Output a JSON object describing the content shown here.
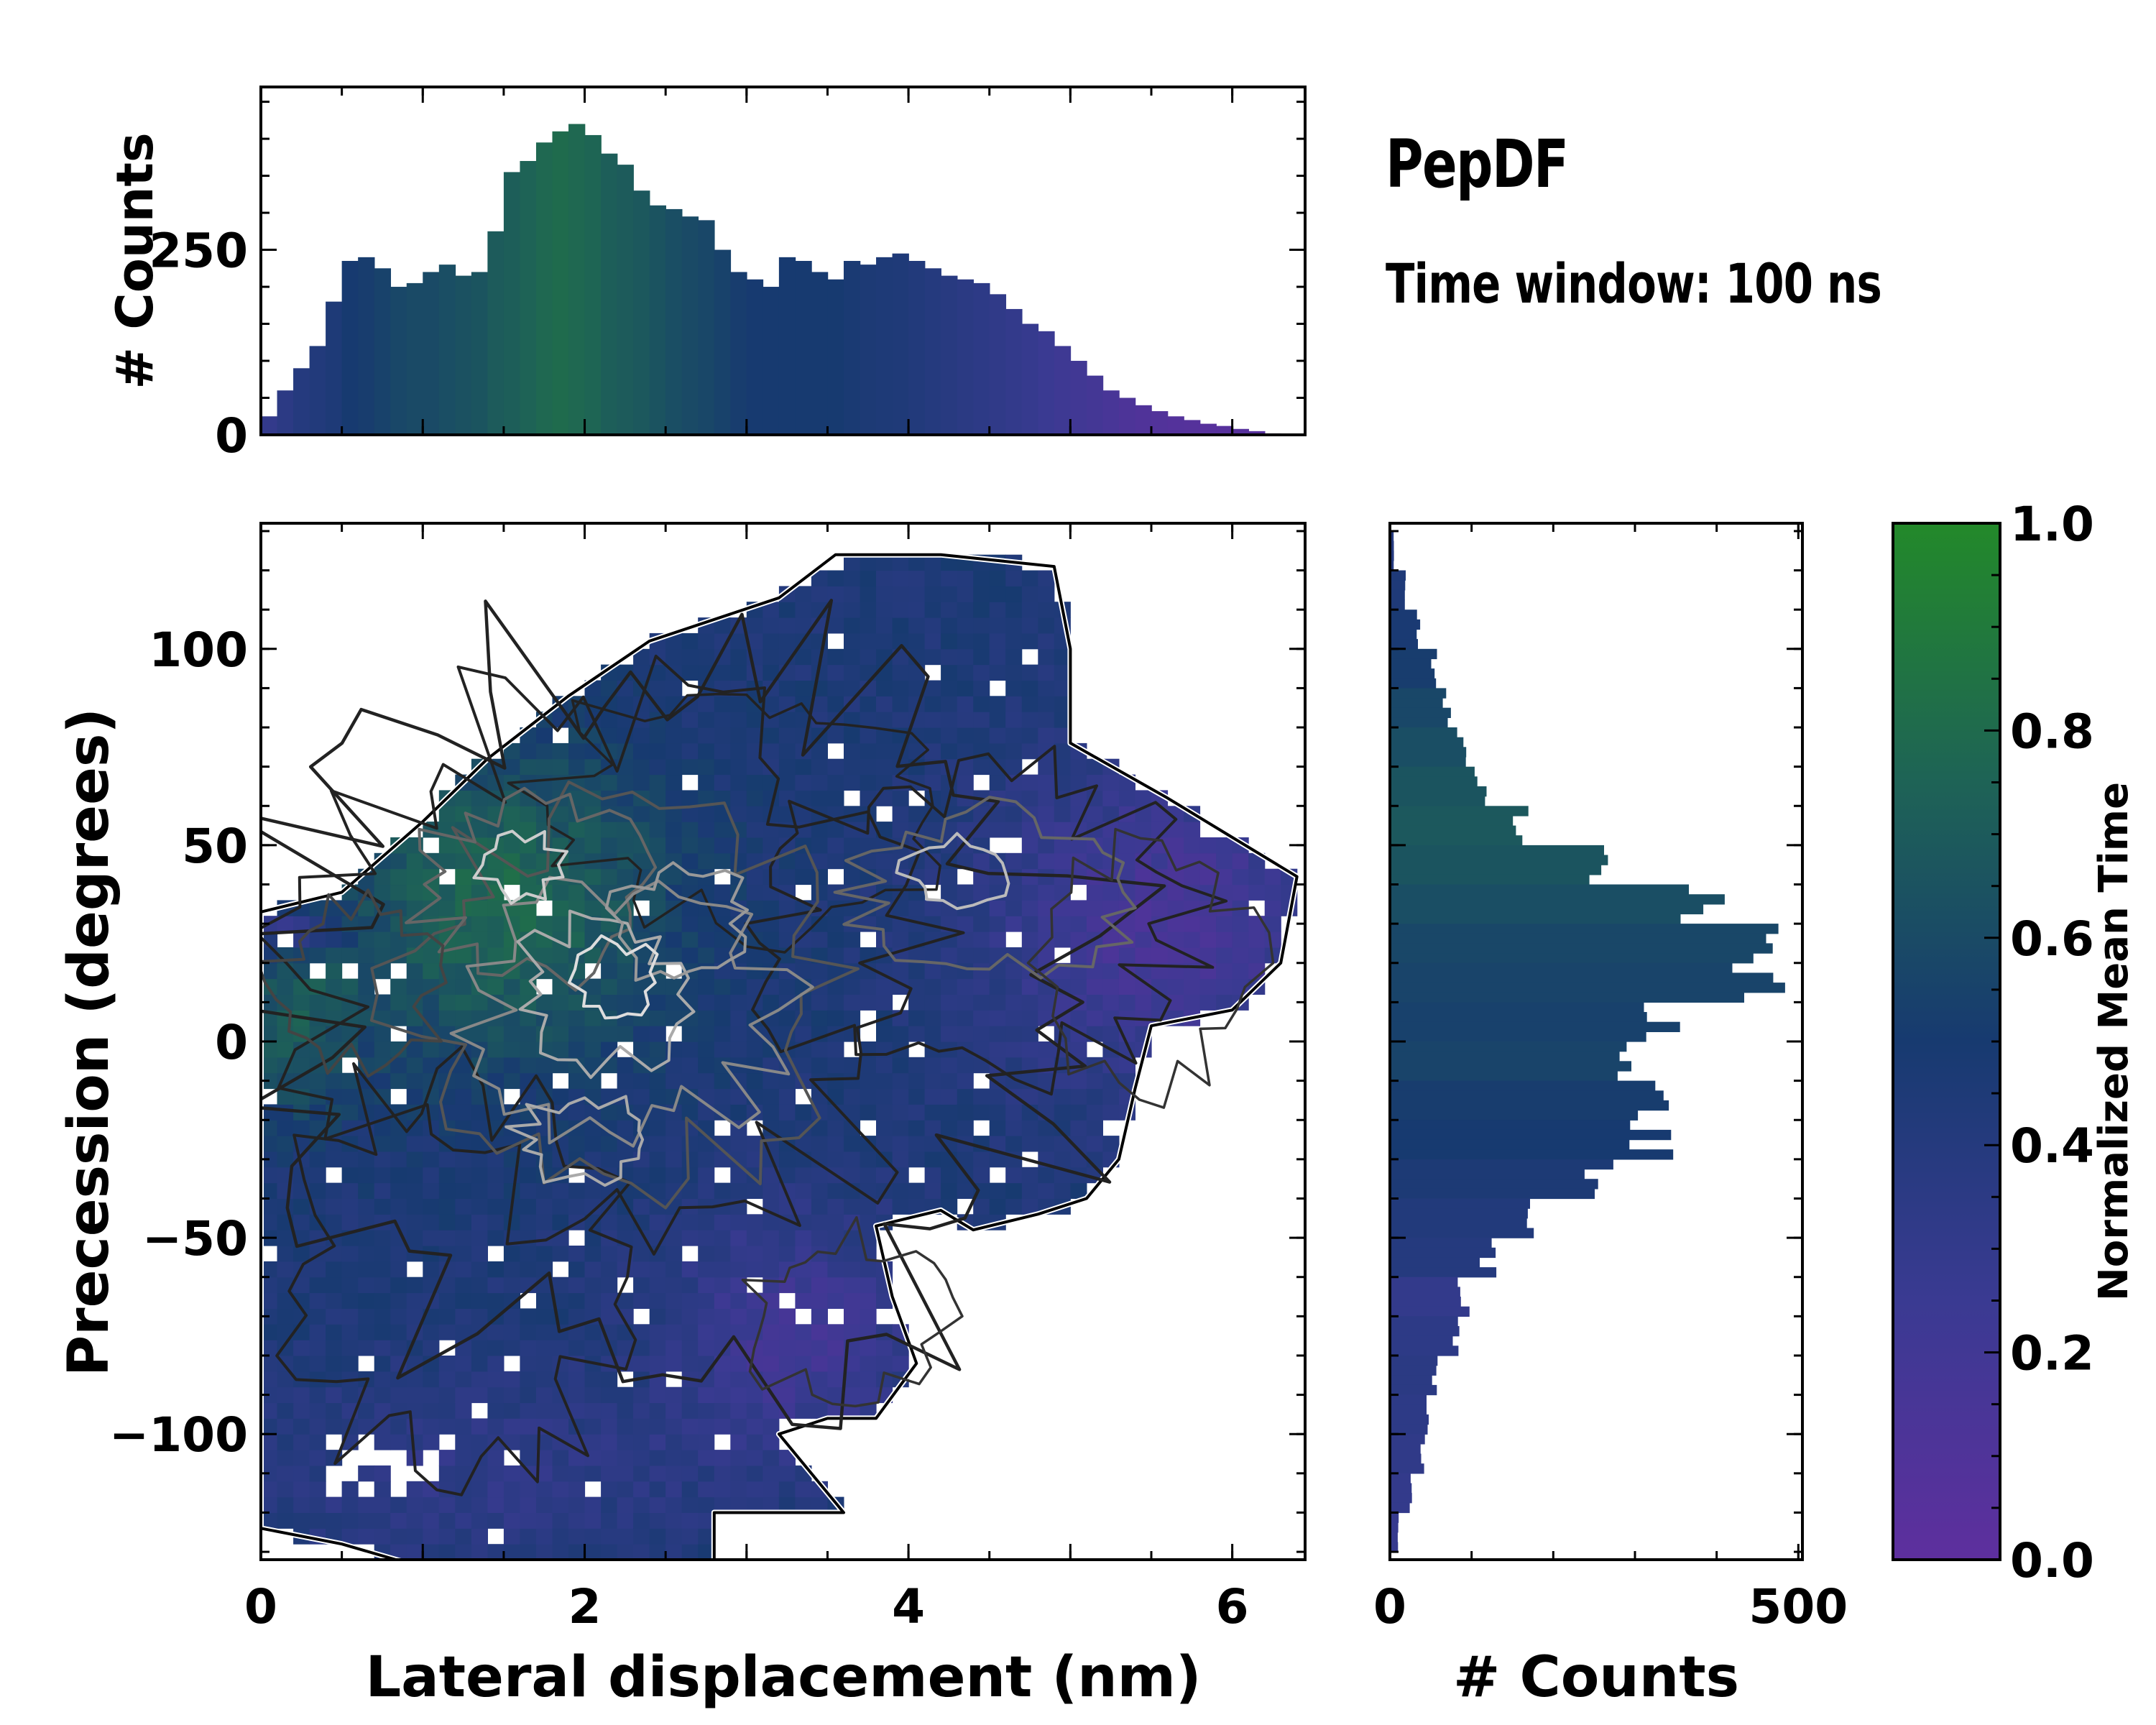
{
  "title": "PepDF",
  "subtitle": "Time window: 100 ns",
  "colors": {
    "low": "#5E2F9E",
    "mid": "#173A70",
    "high": "#23892A"
  },
  "chart_data": [
    {
      "type": "heatmap",
      "panel": "main",
      "xlabel": "Lateral displacement (nm)",
      "ylabel": "Precession (degrees)",
      "xlim": [
        0,
        6.45
      ],
      "ylim": [
        -132,
        132
      ],
      "xticks": [
        0,
        2,
        4,
        6
      ],
      "xtick_labels": [
        "0",
        "2",
        "4",
        "6"
      ],
      "yticks": [
        100,
        50,
        0,
        -50,
        -100
      ],
      "ytick_labels": [
        "100",
        "50",
        "0",
        "−50",
        "−100"
      ],
      "color_meaning": "Normalized Mean Time",
      "overlay": "density contours"
    },
    {
      "type": "bar",
      "panel": "top",
      "orientation": "vertical",
      "ylabel": "# Counts",
      "xlim": [
        0,
        6.45
      ],
      "ylim": [
        0,
        470
      ],
      "yticks": [
        0,
        250
      ],
      "ytick_labels": [
        "0",
        "250"
      ],
      "x": [
        0.05,
        0.15,
        0.25,
        0.35,
        0.45,
        0.55,
        0.65,
        0.75,
        0.85,
        0.95,
        1.05,
        1.15,
        1.25,
        1.35,
        1.45,
        1.55,
        1.65,
        1.75,
        1.85,
        1.95,
        2.05,
        2.15,
        2.25,
        2.35,
        2.45,
        2.55,
        2.65,
        2.75,
        2.85,
        2.95,
        3.05,
        3.15,
        3.25,
        3.35,
        3.45,
        3.55,
        3.65,
        3.75,
        3.85,
        3.95,
        4.05,
        4.15,
        4.25,
        4.35,
        4.45,
        4.55,
        4.65,
        4.75,
        4.85,
        4.95,
        5.05,
        5.15,
        5.25,
        5.35,
        5.45,
        5.55,
        5.65,
        5.75,
        5.85,
        5.95,
        6.05,
        6.15,
        6.25
      ],
      "values": [
        25,
        60,
        90,
        120,
        180,
        235,
        240,
        225,
        200,
        205,
        220,
        230,
        215,
        220,
        275,
        355,
        370,
        395,
        410,
        420,
        405,
        380,
        365,
        330,
        310,
        305,
        295,
        290,
        250,
        220,
        210,
        200,
        240,
        235,
        220,
        210,
        235,
        230,
        240,
        245,
        235,
        225,
        215,
        210,
        205,
        190,
        170,
        150,
        140,
        120,
        100,
        80,
        60,
        50,
        40,
        32,
        25,
        20,
        15,
        12,
        8,
        5,
        2
      ],
      "colors": [
        0.3,
        0.35,
        0.4,
        0.42,
        0.45,
        0.5,
        0.52,
        0.55,
        0.58,
        0.6,
        0.6,
        0.62,
        0.64,
        0.66,
        0.7,
        0.72,
        0.75,
        0.78,
        0.8,
        0.78,
        0.76,
        0.72,
        0.7,
        0.68,
        0.65,
        0.62,
        0.6,
        0.58,
        0.55,
        0.52,
        0.5,
        0.5,
        0.5,
        0.5,
        0.5,
        0.5,
        0.48,
        0.46,
        0.45,
        0.44,
        0.42,
        0.4,
        0.38,
        0.36,
        0.34,
        0.32,
        0.3,
        0.28,
        0.25,
        0.22,
        0.2,
        0.18,
        0.15,
        0.12,
        0.1,
        0.08,
        0.07,
        0.06,
        0.05,
        0.05,
        0.05,
        0.05,
        0.05
      ]
    },
    {
      "type": "bar",
      "panel": "right",
      "orientation": "horizontal",
      "xlabel": "# Counts",
      "xlim": [
        0,
        505
      ],
      "xticks": [
        0,
        500
      ],
      "xtick_labels": [
        "0",
        "500"
      ],
      "y": [
        125,
        115,
        105,
        95,
        85,
        75,
        65,
        55,
        45,
        35,
        25,
        15,
        5,
        -5,
        -15,
        -25,
        -35,
        -45,
        -55,
        -65,
        -75,
        -85,
        -95,
        -105,
        -115,
        -125
      ],
      "values": [
        5,
        18,
        35,
        55,
        70,
        90,
        110,
        165,
        260,
        390,
        470,
        455,
        340,
        280,
        330,
        320,
        260,
        180,
        120,
        90,
        80,
        55,
        45,
        40,
        25,
        10
      ],
      "colors": [
        0.4,
        0.44,
        0.48,
        0.52,
        0.58,
        0.62,
        0.66,
        0.68,
        0.66,
        0.62,
        0.58,
        0.56,
        0.54,
        0.56,
        0.52,
        0.5,
        0.46,
        0.42,
        0.4,
        0.3,
        0.34,
        0.36,
        0.34,
        0.32,
        0.3,
        0.28
      ]
    },
    {
      "type": "colorbar",
      "panel": "colorbar",
      "label": "Normalized Mean Time",
      "range": [
        0,
        1
      ],
      "ticks": [
        1.0,
        0.8,
        0.6,
        0.4,
        0.2,
        0.0
      ],
      "tick_labels": [
        "1.0",
        "0.8",
        "0.6",
        "0.4",
        "0.2",
        "0.0"
      ]
    }
  ]
}
